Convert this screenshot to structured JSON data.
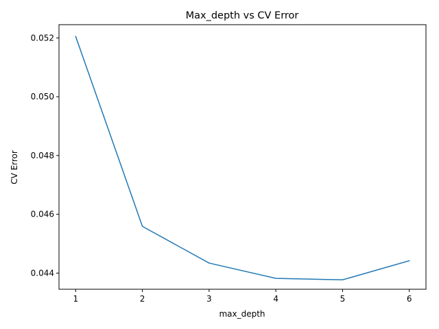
{
  "chart_data": {
    "type": "line",
    "title": "Max_depth vs CV Error",
    "xlabel": "max_depth",
    "ylabel": "CV Error",
    "xlim": [
      0.75,
      6.25
    ],
    "ylim": [
      0.04345,
      0.05245
    ],
    "x_ticks": [
      1,
      2,
      3,
      4,
      5,
      6
    ],
    "y_ticks": [
      0.044,
      0.046,
      0.048,
      0.05,
      0.052
    ],
    "x_tick_labels": [
      "1",
      "2",
      "3",
      "4",
      "5",
      "6"
    ],
    "y_tick_labels": [
      "0.044",
      "0.046",
      "0.048",
      "0.050",
      "0.052"
    ],
    "grid": false,
    "series": [
      {
        "color": "#1f77b4",
        "x": [
          1,
          2,
          3,
          4,
          5,
          6
        ],
        "y": [
          0.05205,
          0.04559,
          0.04434,
          0.04382,
          0.04377,
          0.04442
        ]
      }
    ]
  }
}
